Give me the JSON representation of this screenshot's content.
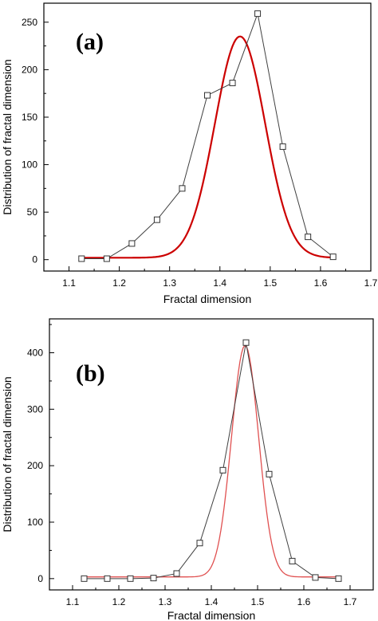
{
  "chart_data": [
    {
      "type": "line",
      "panel_label": "(a)",
      "xlabel": "Fractal dimension",
      "ylabel": "Distribution of fractal dimension",
      "xlim": [
        1.05,
        1.7
      ],
      "ylim": [
        -12,
        270
      ],
      "xticks": [
        1.1,
        1.2,
        1.3,
        1.4,
        1.5,
        1.6,
        1.7
      ],
      "xtick_labels": [
        "1.1",
        "1.2",
        "1.3",
        "1.4",
        "1.5",
        "1.6",
        "1.7"
      ],
      "yticks": [
        0,
        50,
        100,
        150,
        200,
        250
      ],
      "ytick_labels": [
        "0",
        "50",
        "100",
        "150",
        "200",
        "250"
      ],
      "grid": false,
      "series": [
        {
          "style": "line-with-square-markers",
          "color": "#404040",
          "x": [
            1.125,
            1.175,
            1.225,
            1.275,
            1.325,
            1.375,
            1.425,
            1.475,
            1.525,
            1.575,
            1.625
          ],
          "y": [
            1,
            1,
            17,
            42,
            75,
            173,
            186,
            259,
            119,
            24,
            3
          ]
        },
        {
          "style": "gaussian-fit",
          "color": "#cc0000",
          "x_range": [
            1.125,
            1.625
          ],
          "y0": 2,
          "amplitude": 233,
          "center": 1.44,
          "width": 0.1
        }
      ]
    },
    {
      "type": "line",
      "panel_label": "(b)",
      "xlabel": "Fractal dimension",
      "ylabel": "Distribution of fractal dimension",
      "xlim": [
        1.05,
        1.75
      ],
      "ylim": [
        -20,
        460
      ],
      "xticks": [
        1.1,
        1.2,
        1.3,
        1.4,
        1.5,
        1.6,
        1.7
      ],
      "xtick_labels": [
        "1.1",
        "1.2",
        "1.3",
        "1.4",
        "1.5",
        "1.6",
        "1.7"
      ],
      "yticks": [
        0,
        100,
        200,
        300,
        400
      ],
      "ytick_labels": [
        "0",
        "100",
        "200",
        "300",
        "400"
      ],
      "grid": false,
      "series": [
        {
          "style": "line-with-square-markers",
          "color": "#404040",
          "x": [
            1.125,
            1.175,
            1.225,
            1.275,
            1.325,
            1.375,
            1.425,
            1.475,
            1.525,
            1.575,
            1.625,
            1.675
          ],
          "y": [
            0,
            0,
            0,
            1,
            9,
            63,
            192,
            418,
            185,
            31,
            2,
            0
          ]
        },
        {
          "style": "gaussian-fit",
          "color": "#e05050",
          "x_range": [
            1.125,
            1.675
          ],
          "y0": 3,
          "amplitude": 410,
          "center": 1.473,
          "width": 0.0585
        }
      ]
    }
  ]
}
